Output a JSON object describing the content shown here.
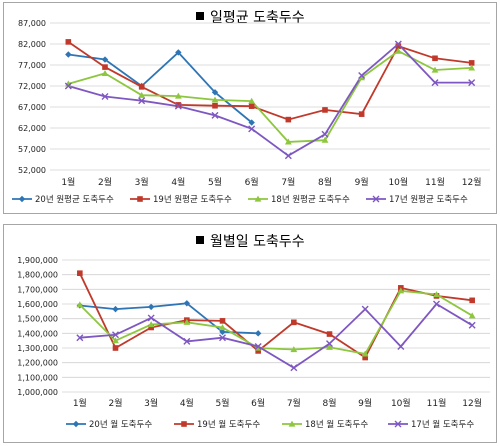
{
  "chart_data": [
    {
      "type": "line",
      "title": "일평균 도축두수",
      "categories": [
        "1월",
        "2월",
        "3월",
        "4월",
        "5월",
        "6월",
        "7월",
        "8월",
        "9월",
        "10월",
        "11월",
        "12월"
      ],
      "ylim": [
        52000,
        87000
      ],
      "yticks": [
        "52,000",
        "57,000",
        "62,000",
        "67,000",
        "72,000",
        "77,000",
        "82,000",
        "87,000"
      ],
      "grid": true,
      "legend_position": "bottom",
      "series": [
        {
          "name": "20년 원평균 도축두수",
          "color": "#2e75b6",
          "marker": "diamond",
          "values": [
            79500,
            78300,
            72000,
            80000,
            70500,
            63300,
            null,
            null,
            null,
            null,
            null,
            null
          ]
        },
        {
          "name": "19년 원평균 도축두수",
          "color": "#c0392b",
          "marker": "square",
          "values": [
            82500,
            76500,
            71800,
            67500,
            67300,
            67200,
            64000,
            66300,
            65300,
            81500,
            78600,
            77500
          ]
        },
        {
          "name": "18년 원평균 도축두수",
          "color": "#8dc63f",
          "marker": "triangle",
          "values": [
            72500,
            75000,
            69800,
            69600,
            68700,
            68400,
            58700,
            59100,
            74000,
            80300,
            75800,
            76300
          ]
        },
        {
          "name": "17년 원평균 도축두수",
          "color": "#7e57c2",
          "marker": "x",
          "values": [
            72000,
            69500,
            68500,
            67200,
            65000,
            61800,
            55400,
            60500,
            74500,
            82000,
            72800,
            72800
          ]
        }
      ]
    },
    {
      "type": "line",
      "title": "월별일 도축두수",
      "categories": [
        "1월",
        "2월",
        "3월",
        "4월",
        "5월",
        "6월",
        "7월",
        "8월",
        "9월",
        "10월",
        "11월",
        "12월"
      ],
      "ylim": [
        1000000,
        1900000
      ],
      "yticks": [
        "1,000,000",
        "1,100,000",
        "1,200,000",
        "1,300,000",
        "1,400,000",
        "1,500,000",
        "1,600,000",
        "1,700,000",
        "1,800,000",
        "1,900,000"
      ],
      "grid": true,
      "legend_position": "bottom",
      "series": [
        {
          "name": "20년 월 도축두수",
          "color": "#2e75b6",
          "marker": "diamond",
          "values": [
            1590000,
            1565000,
            1580000,
            1605000,
            1410000,
            1400000,
            null,
            null,
            null,
            null,
            null,
            null
          ]
        },
        {
          "name": "19년 월 도축두수",
          "color": "#c0392b",
          "marker": "square",
          "values": [
            1810000,
            1300000,
            1440000,
            1490000,
            1485000,
            1280000,
            1475000,
            1395000,
            1235000,
            1710000,
            1655000,
            1625000
          ]
        },
        {
          "name": "18년 월 도축두수",
          "color": "#8dc63f",
          "marker": "triangle",
          "values": [
            1595000,
            1350000,
            1460000,
            1475000,
            1440000,
            1300000,
            1290000,
            1305000,
            1260000,
            1690000,
            1665000,
            1520000
          ]
        },
        {
          "name": "17년 월 도축두수",
          "color": "#7e57c2",
          "marker": "x",
          "values": [
            1370000,
            1390000,
            1505000,
            1345000,
            1370000,
            1310000,
            1165000,
            1330000,
            1565000,
            1310000,
            1600000,
            1455000
          ]
        }
      ]
    }
  ]
}
